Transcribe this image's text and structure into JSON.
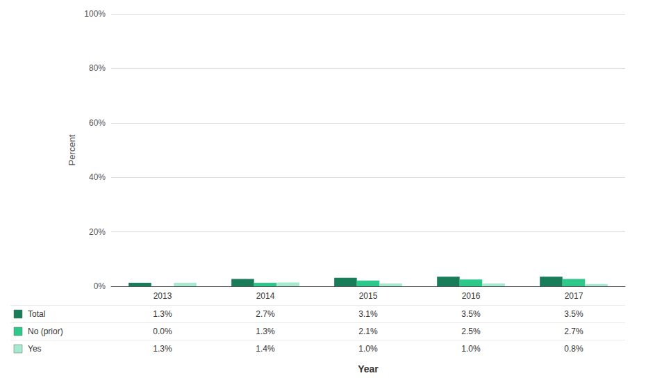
{
  "chart_data": {
    "type": "bar",
    "xlabel": "Year",
    "ylabel": "Percent",
    "categories": [
      "2013",
      "2014",
      "2015",
      "2016",
      "2017"
    ],
    "series": [
      {
        "name": "Total",
        "color": "#1a7d5a",
        "values": [
          1.3,
          2.7,
          3.1,
          3.5,
          3.5
        ],
        "value_labels": [
          "1.3%",
          "2.7%",
          "3.1%",
          "3.5%",
          "3.5%"
        ]
      },
      {
        "name": "No (prior)",
        "color": "#2dc88a",
        "values": [
          0.0,
          1.3,
          2.1,
          2.5,
          2.7
        ],
        "value_labels": [
          "0.0%",
          "1.3%",
          "2.1%",
          "2.5%",
          "2.7%"
        ]
      },
      {
        "name": "Yes",
        "color": "#a8e8cf",
        "values": [
          1.3,
          1.4,
          1.0,
          1.0,
          0.8
        ],
        "value_labels": [
          "1.3%",
          "1.4%",
          "1.0%",
          "1.0%",
          "0.8%"
        ]
      }
    ],
    "ylim": [
      0,
      100
    ],
    "yticks": [
      {
        "value": 0,
        "label": "0%"
      },
      {
        "value": 20,
        "label": "20%"
      },
      {
        "value": 40,
        "label": "40%"
      },
      {
        "value": 60,
        "label": "60%"
      },
      {
        "value": 80,
        "label": "80%"
      },
      {
        "value": 100,
        "label": "100%"
      }
    ],
    "grid": true
  }
}
